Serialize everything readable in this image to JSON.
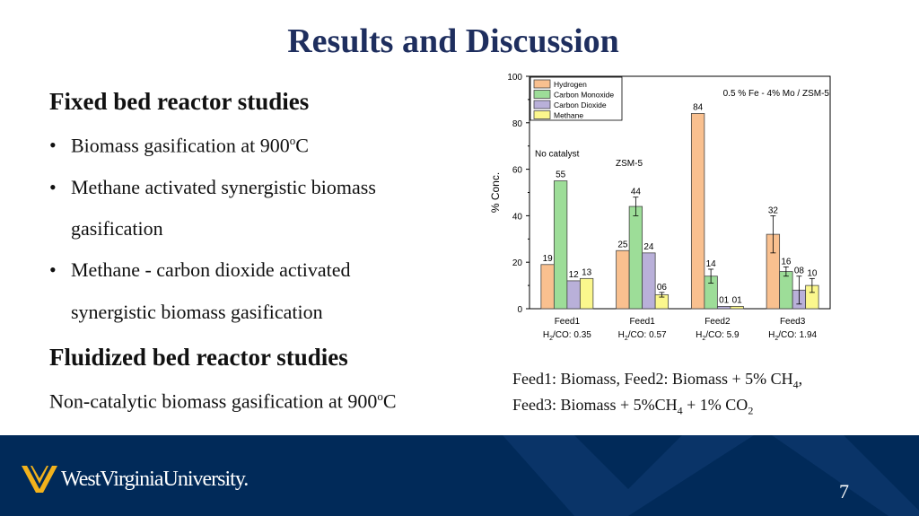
{
  "slide": {
    "title": "Results and Discussion",
    "fixed_heading": "Fixed bed reactor studies",
    "bullets": [
      {
        "text": "Biomass gasification at 900",
        "sup": "o",
        "after": "C"
      },
      {
        "line1": "Methane activated synergistic biomass",
        "line2": "gasification"
      },
      {
        "line1": "Methane - carbon dioxide activated",
        "line2": "synergistic biomass gasification"
      }
    ],
    "fluid_heading": "Fluidized bed reactor studies",
    "fluid_text": "Non-catalytic biomass gasification at 900",
    "fluid_sup": "o",
    "fluid_after": "C",
    "feed_line1": {
      "a": "Feed1: Biomass, Feed2: Biomass + 5% CH",
      "sub": "4",
      "b": ","
    },
    "feed_line2": {
      "a": "Feed3: Biomass + 5%CH",
      "sub1": "4",
      "b": " + 1% CO",
      "sub2": "2"
    },
    "page_number": "7",
    "logo_text": "WestVirginiaUniversity."
  },
  "colors": {
    "title": "#1e2e5e",
    "footer": "#012a59",
    "hydrogen": "#f9c08f",
    "carbon_monoxide": "#9ddd98",
    "carbon_dioxide": "#b9b0d9",
    "methane": "#fbf78d",
    "logo_gold": "#f2b21c"
  },
  "chart_data": {
    "type": "bar",
    "ylabel": "% Conc.",
    "ylim": [
      0,
      100
    ],
    "yticks": [
      0,
      20,
      40,
      60,
      80,
      100
    ],
    "groups": [
      {
        "label": "Feed1",
        "sub_pre": "H",
        "sub": "2",
        "sub_post": "/CO: 0.35"
      },
      {
        "label": "Feed1",
        "sub_pre": "H",
        "sub": "2",
        "sub_post": "/CO: 0.57"
      },
      {
        "label": "Feed2",
        "sub_pre": "H",
        "sub": "2",
        "sub_post": "/CO: 5.9"
      },
      {
        "label": "Feed3",
        "sub_pre": "H",
        "sub": "2",
        "sub_post": "/CO: 1.94"
      }
    ],
    "series": [
      {
        "name": "Hydrogen",
        "values": [
          19,
          25,
          84,
          32
        ],
        "labels": [
          "19",
          "25",
          "84",
          "32"
        ],
        "errors": [
          0,
          0,
          0,
          8
        ]
      },
      {
        "name": "Carbon Monoxide",
        "values": [
          55,
          44,
          14,
          16
        ],
        "labels": [
          "55",
          "44",
          "14",
          "16"
        ],
        "errors": [
          0,
          4,
          3,
          2
        ]
      },
      {
        "name": "Carbon Dioxide",
        "values": [
          12,
          24,
          1,
          8
        ],
        "labels": [
          "12",
          "24",
          "01",
          "08"
        ],
        "errors": [
          0,
          0,
          0,
          6
        ]
      },
      {
        "name": "Methane",
        "values": [
          13,
          6,
          1,
          10
        ],
        "labels": [
          "13",
          "06",
          "01",
          "10"
        ],
        "errors": [
          0,
          1,
          0,
          3
        ]
      }
    ],
    "annotations": [
      "No catalyst",
      "ZSM-5",
      "0.5 % Fe - 4% Mo / ZSM-5"
    ]
  }
}
